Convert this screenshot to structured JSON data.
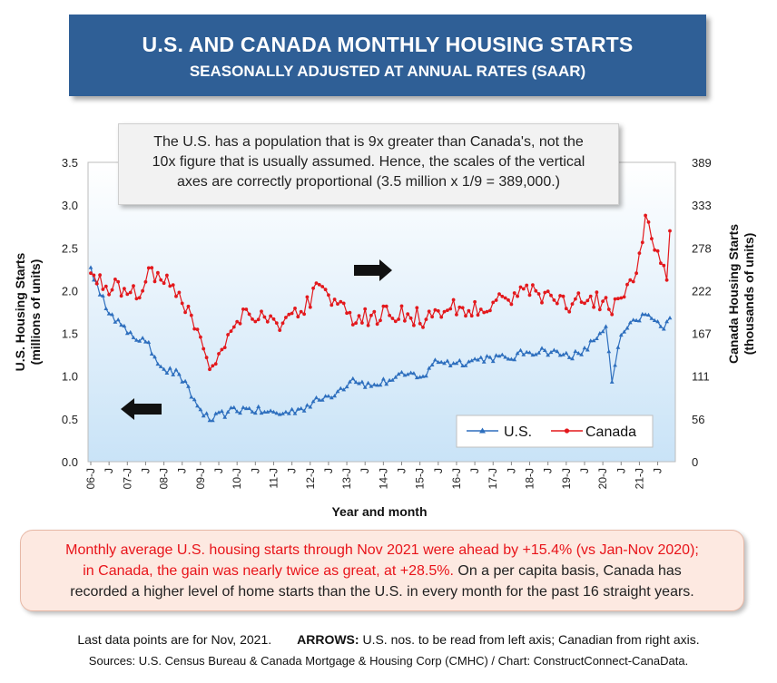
{
  "header": {
    "title": "U.S. AND CANADA MONTHLY HOUSING STARTS",
    "subtitle": "SEASONALLY ADJUSTED AT ANNUAL RATES (SAAR)"
  },
  "note": {
    "line1": "The U.S. has a population that is 9x greater than Canada's, not the",
    "line2": "10x figure that is usually assumed. Hence, the scales of the  vertical",
    "line3": "axes are correctly proportional (3.5 million x 1/9 = 389,000.)"
  },
  "summary": {
    "red_line1": "Monthly average U.S. housing starts through Nov 2021 were ahead by +15.4% (vs Jan-Nov 2020);",
    "red_line2": "in Canada, the gain was nearly twice as great, at +28.5%.",
    "black_line2": " On a per capita basis, Canada has",
    "line3": "recorded a higher level of home starts than the U.S. in every month for the past 16 straight  years."
  },
  "footer": {
    "last_points": "Last data points are for Nov, 2021.",
    "arrows_label": "ARROWS:",
    "arrows_text": " U.S. nos. to be read from left axis; Canadian from right axis.",
    "sources": "Sources: U.S. Census Bureau & Canada Mortgage & Housing Corp (CMHC) / Chart: ConstructConnect-CanaData."
  },
  "chart_data": {
    "type": "line",
    "xlabel": "Year and month",
    "ylabel_left": [
      "U.S. Housing Starts",
      "(millions of units)"
    ],
    "ylabel_right": [
      "Canada Housing Starts",
      "(thousands of units)"
    ],
    "x_tick_labels": [
      "06-J",
      "J",
      "07-J",
      "J",
      "08-J",
      "J",
      "09-J",
      "J",
      "10-J",
      "J",
      "11-J",
      "J",
      "12-J",
      "J",
      "13-J",
      "J",
      "14-J",
      "J",
      "15-J",
      "J",
      "16-J",
      "J",
      "17-J",
      "J",
      "18-J",
      "J",
      "19-J",
      "J",
      "20-J",
      "J",
      "21-J",
      "J"
    ],
    "x_range": [
      "Jan 2006",
      "Nov 2021"
    ],
    "y_left_range": [
      0,
      3.5
    ],
    "y_left_ticks": [
      "0.0",
      "0.5",
      "1.0",
      "1.5",
      "2.0",
      "2.5",
      "3.0",
      "3.5"
    ],
    "y_right_range": [
      0,
      389
    ],
    "y_right_ticks": [
      "0",
      "56",
      "111",
      "167",
      "222",
      "278",
      "333",
      "389"
    ],
    "grid": false,
    "legend_position": "bottom-right",
    "series_colors": {
      "us": "#2e6fbe",
      "canada": "#e3181c"
    },
    "series": [
      {
        "name": "U.S.",
        "axis": "left",
        "unit": "millions of units",
        "anchors": [
          {
            "t": "2006-01",
            "v": 2.27
          },
          {
            "t": "2006-04",
            "v": 1.95
          },
          {
            "t": "2006-08",
            "v": 1.72
          },
          {
            "t": "2007-01",
            "v": 1.5
          },
          {
            "t": "2007-07",
            "v": 1.4
          },
          {
            "t": "2008-01",
            "v": 1.08
          },
          {
            "t": "2008-06",
            "v": 1.02
          },
          {
            "t": "2008-12",
            "v": 0.65
          },
          {
            "t": "2009-04",
            "v": 0.48
          },
          {
            "t": "2009-10",
            "v": 0.58
          },
          {
            "t": "2010-04",
            "v": 0.62
          },
          {
            "t": "2010-10",
            "v": 0.58
          },
          {
            "t": "2011-04",
            "v": 0.56
          },
          {
            "t": "2011-10",
            "v": 0.62
          },
          {
            "t": "2012-04",
            "v": 0.72
          },
          {
            "t": "2012-10",
            "v": 0.82
          },
          {
            "t": "2013-03",
            "v": 0.97
          },
          {
            "t": "2013-09",
            "v": 0.88
          },
          {
            "t": "2014-03",
            "v": 0.95
          },
          {
            "t": "2014-09",
            "v": 1.02
          },
          {
            "t": "2015-03",
            "v": 1.0
          },
          {
            "t": "2015-06",
            "v": 1.19
          },
          {
            "t": "2015-12",
            "v": 1.15
          },
          {
            "t": "2016-06",
            "v": 1.18
          },
          {
            "t": "2016-12",
            "v": 1.22
          },
          {
            "t": "2017-06",
            "v": 1.2
          },
          {
            "t": "2017-12",
            "v": 1.28
          },
          {
            "t": "2018-06",
            "v": 1.3
          },
          {
            "t": "2018-12",
            "v": 1.25
          },
          {
            "t": "2019-06",
            "v": 1.25
          },
          {
            "t": "2019-12",
            "v": 1.5
          },
          {
            "t": "2020-02",
            "v": 1.58
          },
          {
            "t": "2020-04",
            "v": 0.93
          },
          {
            "t": "2020-07",
            "v": 1.48
          },
          {
            "t": "2020-12",
            "v": 1.65
          },
          {
            "t": "2021-03",
            "v": 1.72
          },
          {
            "t": "2021-06",
            "v": 1.65
          },
          {
            "t": "2021-09",
            "v": 1.55
          },
          {
            "t": "2021-11",
            "v": 1.68
          }
        ]
      },
      {
        "name": "Canada",
        "axis": "right",
        "unit": "thousands of units",
        "anchors": [
          {
            "t": "2006-01",
            "v": 245
          },
          {
            "t": "2006-06",
            "v": 228
          },
          {
            "t": "2006-12",
            "v": 225
          },
          {
            "t": "2007-06",
            "v": 222
          },
          {
            "t": "2007-09",
            "v": 252
          },
          {
            "t": "2008-01",
            "v": 232
          },
          {
            "t": "2008-06",
            "v": 220
          },
          {
            "t": "2008-12",
            "v": 172
          },
          {
            "t": "2009-04",
            "v": 120
          },
          {
            "t": "2009-10",
            "v": 165
          },
          {
            "t": "2010-04",
            "v": 198
          },
          {
            "t": "2010-10",
            "v": 188
          },
          {
            "t": "2011-04",
            "v": 180
          },
          {
            "t": "2011-10",
            "v": 195
          },
          {
            "t": "2012-04",
            "v": 230
          },
          {
            "t": "2012-10",
            "v": 205
          },
          {
            "t": "2013-03",
            "v": 178
          },
          {
            "t": "2013-09",
            "v": 190
          },
          {
            "t": "2014-03",
            "v": 190
          },
          {
            "t": "2014-09",
            "v": 192
          },
          {
            "t": "2015-03",
            "v": 185
          },
          {
            "t": "2015-09",
            "v": 195
          },
          {
            "t": "2016-03",
            "v": 200
          },
          {
            "t": "2016-09",
            "v": 198
          },
          {
            "t": "2017-03",
            "v": 218
          },
          {
            "t": "2017-09",
            "v": 215
          },
          {
            "t": "2018-03",
            "v": 222
          },
          {
            "t": "2018-09",
            "v": 210
          },
          {
            "t": "2019-03",
            "v": 205
          },
          {
            "t": "2019-09",
            "v": 215
          },
          {
            "t": "2020-03",
            "v": 198
          },
          {
            "t": "2020-06",
            "v": 212
          },
          {
            "t": "2020-12",
            "v": 245
          },
          {
            "t": "2021-03",
            "v": 320
          },
          {
            "t": "2021-06",
            "v": 275
          },
          {
            "t": "2021-09",
            "v": 255
          },
          {
            "t": "2021-10",
            "v": 236
          },
          {
            "t": "2021-11",
            "v": 300
          }
        ]
      }
    ],
    "arrows": [
      {
        "direction": "right",
        "points_to": "right axis"
      },
      {
        "direction": "left",
        "points_to": "left axis"
      }
    ]
  }
}
